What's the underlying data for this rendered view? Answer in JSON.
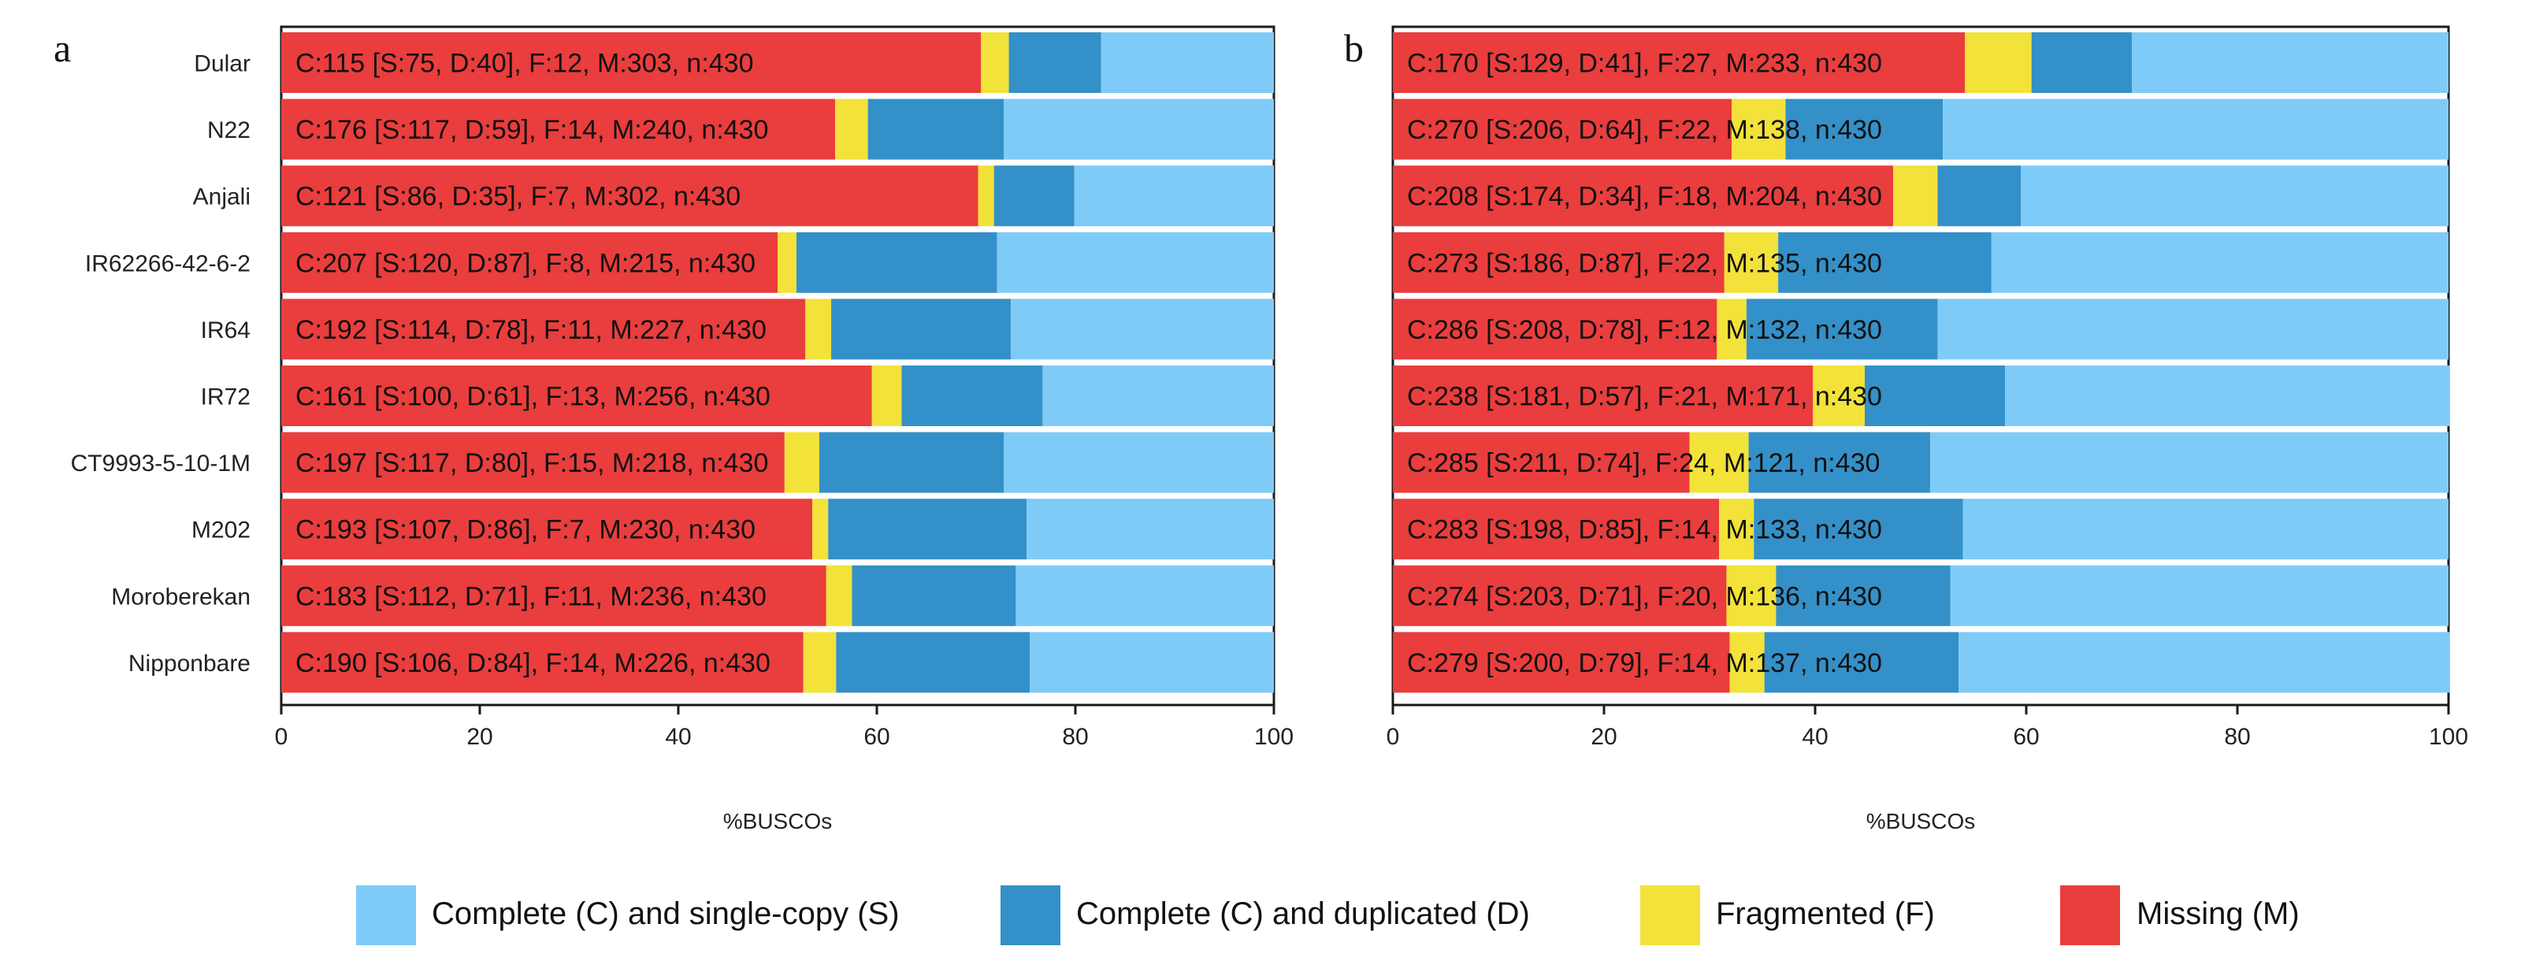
{
  "colors": {
    "single": "#7fcbf7",
    "duplicated": "#3490c8",
    "fragmented": "#f2e23a",
    "missing": "#ea3d3d"
  },
  "legend": [
    {
      "key": "single",
      "label": "Complete (C) and single-copy (S)"
    },
    {
      "key": "duplicated",
      "label": "Complete (C) and duplicated (D)"
    },
    {
      "key": "fragmented",
      "label": "Fragmented (F)"
    },
    {
      "key": "missing",
      "label": "Missing (M)"
    }
  ],
  "chart_data": [
    {
      "type": "bar",
      "orientation": "horizontal",
      "stacked": true,
      "panel_label": "a",
      "xlabel": "%BUSCOs",
      "xlim": [
        0,
        100
      ],
      "xticks": [
        "0",
        "20",
        "40",
        "60",
        "80",
        "100"
      ],
      "legend_placement": "bottom",
      "categories": [
        "Dular",
        "N22",
        "Anjali",
        "IR62266-42-6-2",
        "IR64",
        "IR72",
        "CT9993-5-10-1M",
        "M202",
        "Moroberekan",
        "Nipponbare"
      ],
      "labels": [
        "C:115 [S:75, D:40], F:12, M:303, n:430",
        "C:176 [S:117, D:59], F:14, M:240, n:430",
        "C:121 [S:86, D:35], F:7, M:302, n:430",
        "C:207 [S:120, D:87], F:8, M:215, n:430",
        "C:192 [S:114, D:78], F:11, M:227, n:430",
        "C:161 [S:100, D:61], F:13, M:256, n:430",
        "C:197 [S:117, D:80], F:15, M:218, n:430",
        "C:193 [S:107, D:86], F:7, M:230, n:430",
        "C:183 [S:112, D:71], F:11, M:236, n:430",
        "C:190 [S:106, D:84], F:14, M:226, n:430"
      ],
      "series": [
        {
          "name": "Missing (M)",
          "key": "missing",
          "values": [
            70.5,
            55.8,
            70.2,
            50.0,
            52.8,
            59.5,
            50.7,
            53.5,
            54.9,
            52.6
          ]
        },
        {
          "name": "Fragmented (F)",
          "key": "fragmented",
          "values": [
            2.8,
            3.3,
            1.6,
            1.9,
            2.6,
            3.0,
            3.5,
            1.6,
            2.6,
            3.3
          ]
        },
        {
          "name": "Complete (C) and duplicated (D)",
          "key": "duplicated",
          "values": [
            9.3,
            13.7,
            8.1,
            20.2,
            18.1,
            14.2,
            18.6,
            20.0,
            16.5,
            19.5
          ]
        },
        {
          "name": "Complete (C) and single-copy (S)",
          "key": "single",
          "values": [
            17.4,
            27.2,
            20.1,
            27.9,
            26.5,
            23.3,
            27.2,
            24.9,
            26.0,
            24.6
          ]
        }
      ]
    },
    {
      "type": "bar",
      "orientation": "horizontal",
      "stacked": true,
      "panel_label": "b",
      "xlabel": "%BUSCOs",
      "xlim": [
        0,
        100
      ],
      "xticks": [
        "0",
        "20",
        "40",
        "60",
        "80",
        "100"
      ],
      "legend_placement": "bottom",
      "categories": [
        "Dular",
        "N22",
        "Anjali",
        "IR62266-42-6-2",
        "IR64",
        "IR72",
        "CT9993-5-10-1M",
        "M202",
        "Moroberekan",
        "Nipponbare"
      ],
      "labels": [
        "C:170 [S:129, D:41], F:27, M:233, n:430",
        "C:270 [S:206, D:64], F:22, M:138, n:430",
        "C:208 [S:174, D:34], F:18, M:204, n:430",
        "C:273 [S:186, D:87], F:22, M:135, n:430",
        "C:286 [S:208, D:78], F:12, M:132, n:430",
        "C:238 [S:181, D:57], F:21, M:171, n:430",
        "C:285 [S:211, D:74], F:24, M:121, n:430",
        "C:283 [S:198, D:85], F:14, M:133, n:430",
        "C:274 [S:203, D:71], F:20, M:136, n:430",
        "C:279 [S:200, D:79], F:14, M:137, n:430"
      ],
      "series": [
        {
          "name": "Missing (M)",
          "key": "missing",
          "values": [
            54.2,
            32.1,
            47.4,
            31.4,
            30.7,
            39.8,
            28.1,
            30.9,
            31.6,
            31.9
          ]
        },
        {
          "name": "Fragmented (F)",
          "key": "fragmented",
          "values": [
            6.3,
            5.1,
            4.2,
            5.1,
            2.8,
            4.9,
            5.6,
            3.3,
            4.7,
            3.3
          ]
        },
        {
          "name": "Complete (C) and duplicated (D)",
          "key": "duplicated",
          "values": [
            9.5,
            14.9,
            7.9,
            20.2,
            18.1,
            13.3,
            17.2,
            19.8,
            16.5,
            18.4
          ]
        },
        {
          "name": "Complete (C) and single-copy (S)",
          "key": "single",
          "values": [
            30.0,
            47.9,
            40.5,
            43.3,
            48.4,
            42.1,
            49.1,
            46.0,
            47.2,
            46.5
          ]
        }
      ]
    }
  ]
}
